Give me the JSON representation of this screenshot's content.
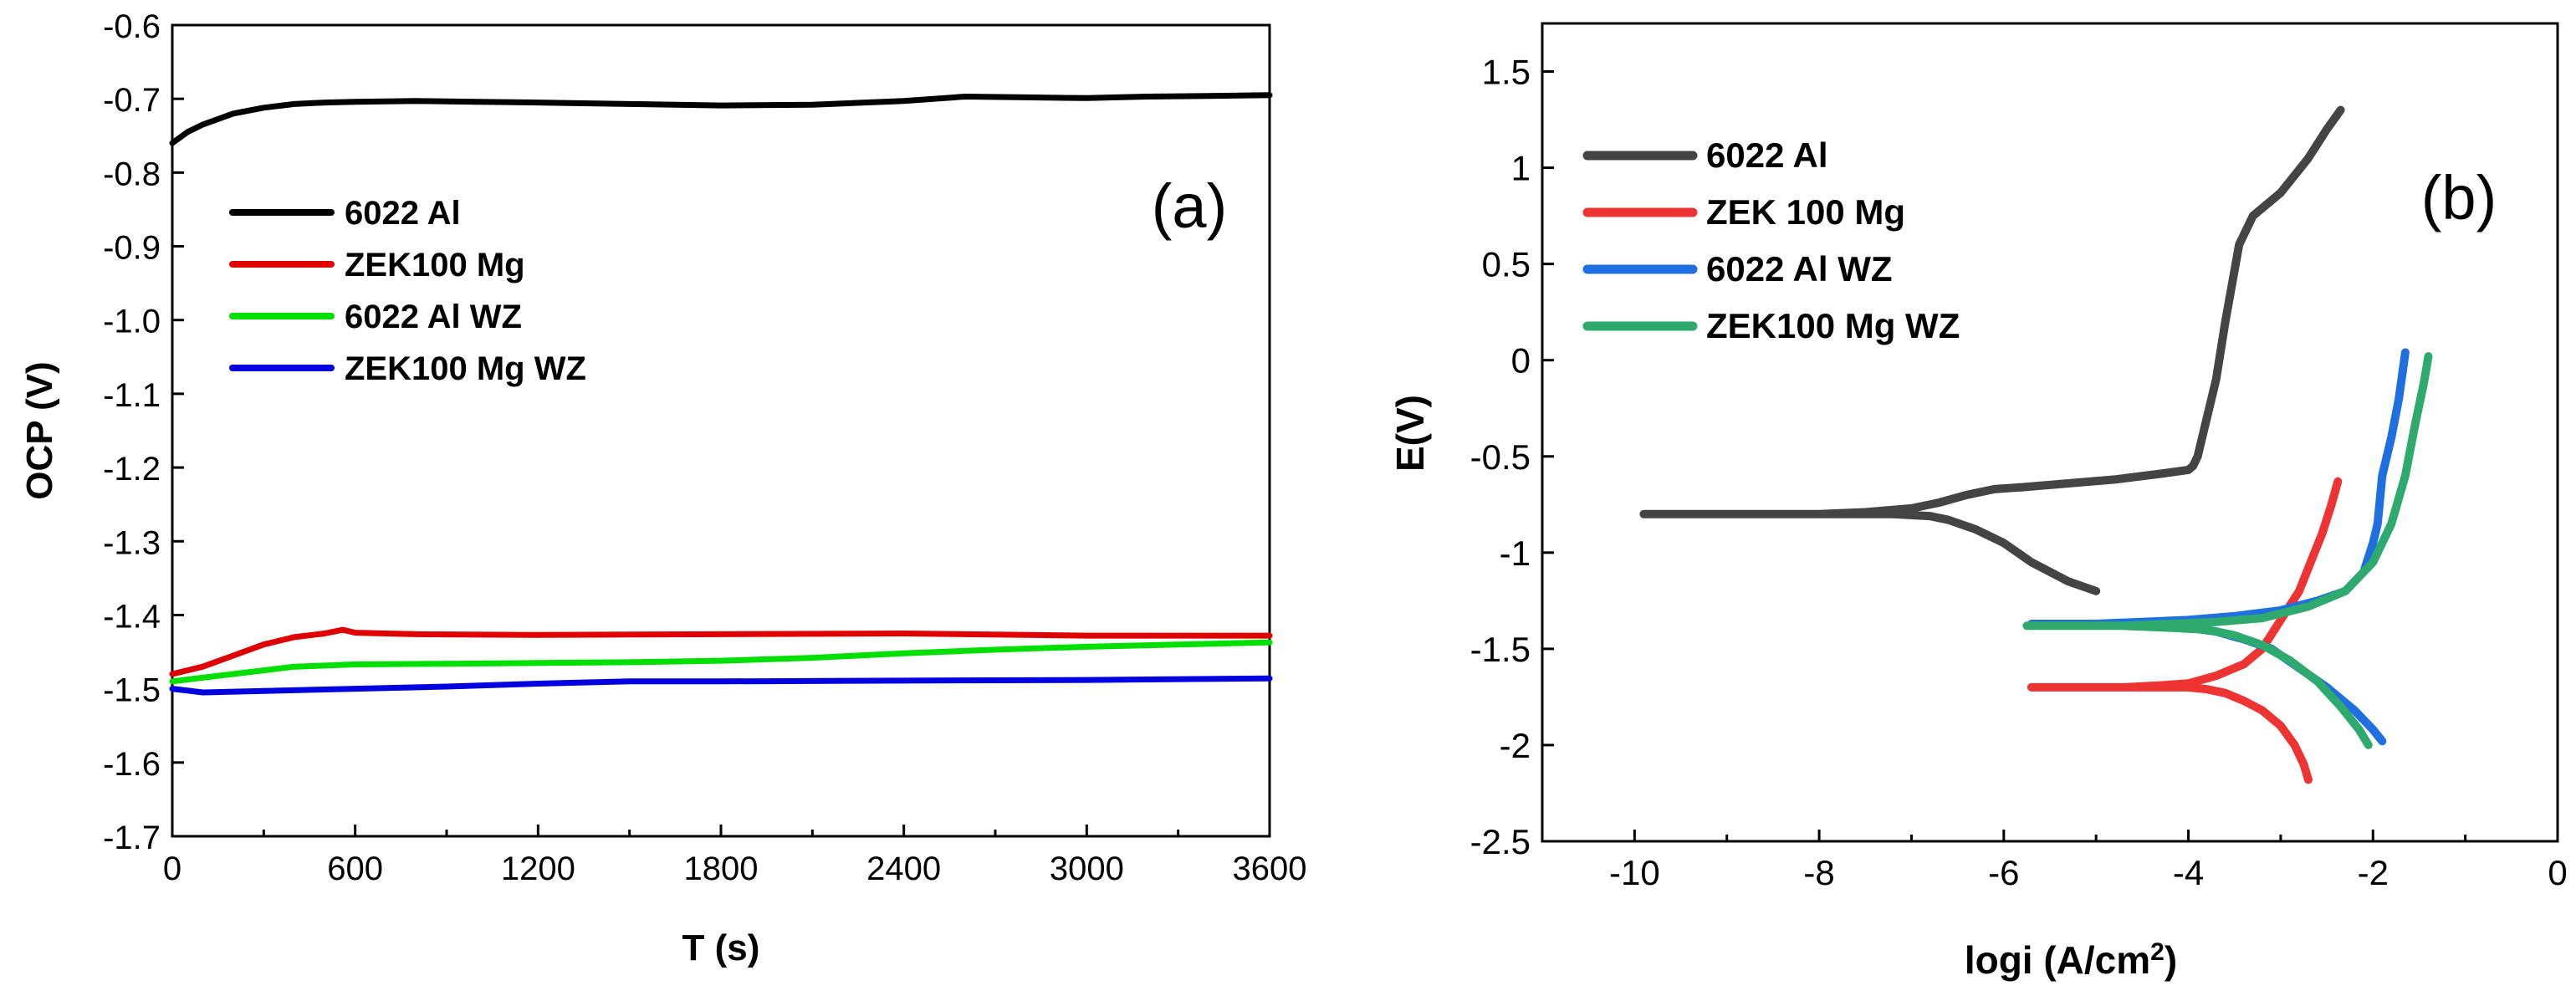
{
  "chart_data": [
    {
      "panel": "(a)",
      "type": "line",
      "xlabel": "T (s)",
      "ylabel": "OCP (V)",
      "xlim": [
        0,
        3600
      ],
      "ylim": [
        -1.7,
        -0.6
      ],
      "xticks": [
        "0",
        "600",
        "1200",
        "1800",
        "2400",
        "3000",
        "3600"
      ],
      "yticks": [
        "-0.6",
        "-0.7",
        "-0.8",
        "-0.9",
        "-1.0",
        "-1.1",
        "-1.2",
        "-1.3",
        "-1.4",
        "-1.5",
        "-1.6",
        "-1.7"
      ],
      "legend_position": "upper-left",
      "series": [
        {
          "name": "6022 Al",
          "color": "#000000",
          "x": [
            0,
            50,
            100,
            200,
            300,
            400,
            500,
            600,
            800,
            1000,
            1200,
            1500,
            1800,
            2100,
            2400,
            2600,
            2800,
            3000,
            3200,
            3400,
            3600
          ],
          "y": [
            -0.76,
            -0.745,
            -0.735,
            -0.72,
            -0.712,
            -0.707,
            -0.705,
            -0.704,
            -0.703,
            -0.704,
            -0.705,
            -0.707,
            -0.709,
            -0.708,
            -0.703,
            -0.697,
            -0.698,
            -0.699,
            -0.697,
            -0.696,
            -0.695
          ]
        },
        {
          "name": "ZEK100 Mg",
          "color": "#e00000",
          "x": [
            0,
            100,
            200,
            300,
            400,
            500,
            560,
            600,
            800,
            1200,
            1800,
            2400,
            3000,
            3600
          ],
          "y": [
            -1.48,
            -1.47,
            -1.455,
            -1.44,
            -1.43,
            -1.425,
            -1.42,
            -1.424,
            -1.426,
            -1.427,
            -1.426,
            -1.425,
            -1.428,
            -1.428
          ]
        },
        {
          "name": "6022 Al WZ",
          "color": "#00e000",
          "x": [
            0,
            100,
            200,
            300,
            400,
            600,
            900,
            1200,
            1500,
            1800,
            2100,
            2400,
            2700,
            3000,
            3300,
            3600
          ],
          "y": [
            -1.49,
            -1.485,
            -1.48,
            -1.475,
            -1.47,
            -1.467,
            -1.466,
            -1.465,
            -1.464,
            -1.462,
            -1.458,
            -1.452,
            -1.447,
            -1.443,
            -1.44,
            -1.437
          ]
        },
        {
          "name": "ZEK100 Mg WZ",
          "color": "#0000e0",
          "x": [
            0,
            100,
            300,
            600,
            900,
            1200,
            1500,
            1800,
            2400,
            3000,
            3600
          ],
          "y": [
            -1.5,
            -1.505,
            -1.503,
            -1.5,
            -1.497,
            -1.493,
            -1.49,
            -1.49,
            -1.489,
            -1.488,
            -1.486
          ]
        }
      ]
    },
    {
      "panel": "(b)",
      "type": "line",
      "xlabel_prefix": "logi (A/cm",
      "xlabel_sup": "2",
      "xlabel_suffix": ")",
      "ylabel": "E(V)",
      "xlim": [
        -11,
        0
      ],
      "ylim": [
        -2.5,
        1.75
      ],
      "xticks": [
        "-10",
        "-8",
        "-6",
        "-4",
        "-2",
        "0"
      ],
      "yticks": [
        "1.5",
        "1",
        "0.5",
        "0",
        "-0.5",
        "-1",
        "-1.5",
        "-2",
        "-2.5"
      ],
      "legend_position": "upper-left",
      "series": [
        {
          "name": "6022 Al",
          "color": "#444444",
          "x": [
            -5.0,
            -5.3,
            -5.7,
            -6.0,
            -6.3,
            -6.6,
            -6.8,
            -7.2,
            -7.6,
            -8.0,
            -8.5,
            -9.0,
            -9.5,
            -9.9,
            -9.5,
            -9.0,
            -8.5,
            -8.0,
            -7.5,
            -7.0,
            -6.7,
            -6.4,
            -6.1,
            -5.8,
            -5.3,
            -4.8,
            -4.3,
            -4.0,
            -3.95,
            -3.9,
            -3.7,
            -3.6,
            -3.45,
            -3.3,
            -3.0,
            -2.7,
            -2.5,
            -2.35
          ],
          "y": [
            -1.2,
            -1.15,
            -1.05,
            -0.95,
            -0.88,
            -0.83,
            -0.81,
            -0.8,
            -0.8,
            -0.8,
            -0.8,
            -0.8,
            -0.8,
            -0.8,
            -0.8,
            -0.8,
            -0.8,
            -0.8,
            -0.79,
            -0.77,
            -0.74,
            -0.7,
            -0.67,
            -0.66,
            -0.64,
            -0.62,
            -0.59,
            -0.57,
            -0.55,
            -0.5,
            -0.1,
            0.2,
            0.6,
            0.75,
            0.87,
            1.05,
            1.2,
            1.3
          ]
        },
        {
          "name": "ZEK 100 Mg",
          "color": "#ee3333",
          "x": [
            -2.7,
            -2.75,
            -2.85,
            -3.0,
            -3.2,
            -3.4,
            -3.6,
            -3.8,
            -4.0,
            -4.3,
            -4.7,
            -5.2,
            -5.7,
            -5.2,
            -4.7,
            -4.3,
            -4.0,
            -3.7,
            -3.4,
            -3.2,
            -3.0,
            -2.8,
            -2.65,
            -2.55,
            -2.45,
            -2.38
          ],
          "y": [
            -2.18,
            -2.1,
            -2.0,
            -1.9,
            -1.82,
            -1.77,
            -1.73,
            -1.71,
            -1.7,
            -1.7,
            -1.7,
            -1.7,
            -1.7,
            -1.7,
            -1.7,
            -1.69,
            -1.68,
            -1.64,
            -1.58,
            -1.5,
            -1.35,
            -1.2,
            -1.02,
            -0.9,
            -0.75,
            -0.63
          ]
        },
        {
          "name": "6022 Al WZ",
          "color": "#1f6fe0",
          "x": [
            -1.9,
            -2.0,
            -2.2,
            -2.5,
            -2.8,
            -3.1,
            -3.4,
            -3.7,
            -4.0,
            -4.5,
            -5.0,
            -5.7,
            -5.0,
            -4.5,
            -4.0,
            -3.5,
            -3.0,
            -2.6,
            -2.3,
            -2.1,
            -2.0,
            -1.95,
            -1.9,
            -1.8,
            -1.72,
            -1.65
          ],
          "y": [
            -1.98,
            -1.92,
            -1.82,
            -1.7,
            -1.6,
            -1.5,
            -1.45,
            -1.41,
            -1.39,
            -1.38,
            -1.37,
            -1.37,
            -1.37,
            -1.36,
            -1.35,
            -1.33,
            -1.3,
            -1.25,
            -1.2,
            -1.1,
            -0.95,
            -0.85,
            -0.6,
            -0.4,
            -0.2,
            0.04
          ]
        },
        {
          "name": "ZEK100 Mg WZ",
          "color": "#2eaa6e",
          "x": [
            -2.05,
            -2.15,
            -2.35,
            -2.6,
            -2.9,
            -3.2,
            -3.5,
            -3.8,
            -4.2,
            -4.7,
            -5.2,
            -5.75,
            -5.2,
            -4.7,
            -4.2,
            -3.7,
            -3.2,
            -2.7,
            -2.3,
            -2.0,
            -1.8,
            -1.65,
            -1.55,
            -1.45,
            -1.4
          ],
          "y": [
            -2.0,
            -1.92,
            -1.8,
            -1.67,
            -1.56,
            -1.48,
            -1.43,
            -1.4,
            -1.39,
            -1.38,
            -1.38,
            -1.38,
            -1.38,
            -1.38,
            -1.37,
            -1.36,
            -1.34,
            -1.28,
            -1.2,
            -1.05,
            -0.85,
            -0.6,
            -0.35,
            -0.12,
            0.02
          ]
        }
      ]
    }
  ]
}
